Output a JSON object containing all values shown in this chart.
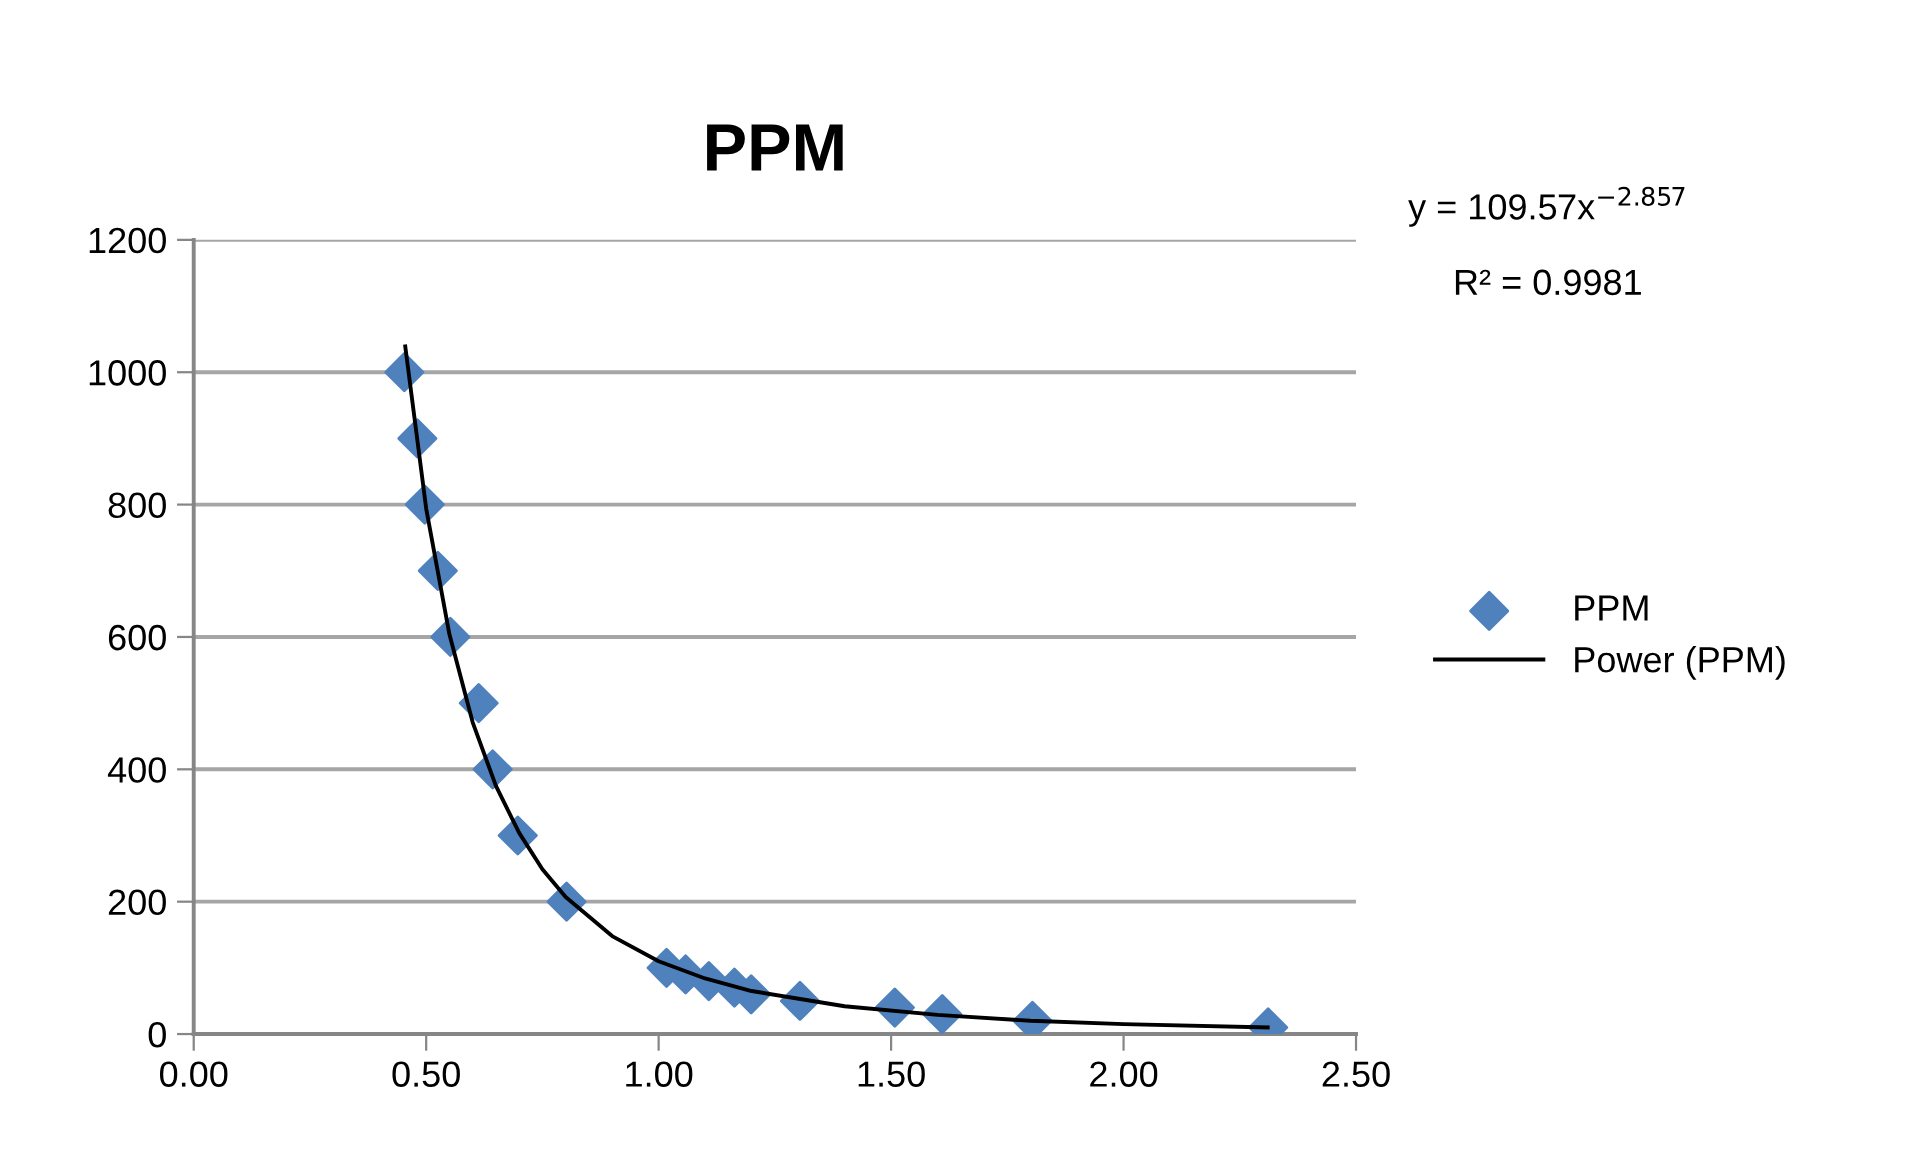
{
  "chart_data": {
    "type": "scatter",
    "title": "PPM",
    "series": [
      {
        "name": "PPM",
        "color": "#4f81bd",
        "marker": "diamond",
        "x": [
          0.453,
          0.481,
          0.497,
          0.525,
          0.552,
          0.613,
          0.643,
          0.697,
          0.802,
          1.017,
          1.058,
          1.108,
          1.163,
          1.199,
          1.304,
          1.508,
          1.61,
          1.804,
          2.311
        ],
        "values": [
          1000,
          900,
          800,
          700,
          600,
          500,
          400,
          300,
          200,
          100,
          90,
          80,
          70,
          60,
          50,
          40,
          30,
          20,
          10
        ]
      },
      {
        "name": "Power (PPM)",
        "type": "line",
        "color": "#000000",
        "marker": "none",
        "line_style": "solid",
        "x": [
          0.455,
          0.5,
          0.55,
          0.6,
          0.65,
          0.7,
          0.75,
          0.8,
          0.9,
          1.0,
          1.1,
          1.2,
          1.4,
          1.6,
          1.8,
          2.0,
          2.31
        ],
        "values": [
          1039,
          794,
          604,
          471,
          375,
          304,
          249,
          207,
          148,
          110,
          84,
          65,
          42,
          29,
          20,
          15,
          10
        ]
      }
    ],
    "xlim": [
      0,
      2.5
    ],
    "ylim": [
      0,
      1200
    ],
    "xticks": [
      {
        "value": 0,
        "label": "0.00"
      },
      {
        "value": 0.5,
        "label": "0.50"
      },
      {
        "value": 1,
        "label": "1.00"
      },
      {
        "value": 1.5,
        "label": "1.50"
      },
      {
        "value": 2,
        "label": "2.00"
      },
      {
        "value": 2.5,
        "label": "2.50"
      }
    ],
    "yticks": [
      0,
      200,
      400,
      600,
      800,
      1000,
      1200
    ],
    "grid": "y",
    "legend": "right",
    "annotations": [
      "y = 109.57x$^{−2.857}$",
      "R² = 0.9981"
    ]
  }
}
